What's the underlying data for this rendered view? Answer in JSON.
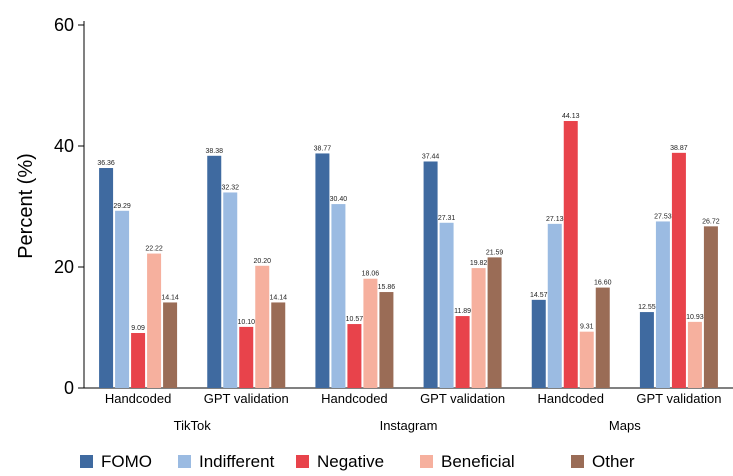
{
  "chart_data": {
    "type": "bar",
    "title": "",
    "xlabel": "",
    "ylabel": "Percent (%)",
    "ylim": [
      0,
      60
    ],
    "yticks": [
      0,
      20,
      40,
      60
    ],
    "grid": false,
    "legend_position": "bottom",
    "groups": [
      "TikTok",
      "Instagram",
      "Maps"
    ],
    "categories": [
      "Handcoded",
      "GPT validation",
      "Handcoded",
      "GPT validation",
      "Handcoded",
      "GPT validation"
    ],
    "category_group": [
      0,
      0,
      1,
      1,
      2,
      2
    ],
    "series": [
      {
        "name": "FOMO",
        "color": "#3f6aa0",
        "values": [
          36.36,
          38.38,
          38.77,
          37.44,
          14.57,
          12.55
        ],
        "labels": [
          "36.36",
          "38.38",
          "38.77",
          "37.44",
          "14.57",
          "12.55"
        ]
      },
      {
        "name": "Indifferent",
        "color": "#9bbbe2",
        "values": [
          29.29,
          32.32,
          30.4,
          27.31,
          27.13,
          27.53
        ],
        "labels": [
          "29.29",
          "32.32",
          "30.40",
          "27.31",
          "27.13",
          "27.53"
        ]
      },
      {
        "name": "Negative",
        "color": "#e8434b",
        "values": [
          9.09,
          10.1,
          10.57,
          11.89,
          44.13,
          38.87
        ],
        "labels": [
          "9.09",
          "10.10",
          "10.57",
          "11.89",
          "44.13",
          "38.87"
        ]
      },
      {
        "name": "Beneficial",
        "color": "#f6b09e",
        "values": [
          22.22,
          20.2,
          18.06,
          19.82,
          9.31,
          10.93
        ],
        "labels": [
          "22.22",
          "20.20",
          "18.06",
          "19.82",
          "9.31",
          "10.93"
        ]
      },
      {
        "name": "Other",
        "color": "#9a6c56",
        "values": [
          14.14,
          14.14,
          15.86,
          21.59,
          16.6,
          26.72
        ],
        "labels": [
          "14.14",
          "14.14",
          "15.86",
          "21.59",
          "16.60",
          "26.72"
        ]
      }
    ]
  }
}
